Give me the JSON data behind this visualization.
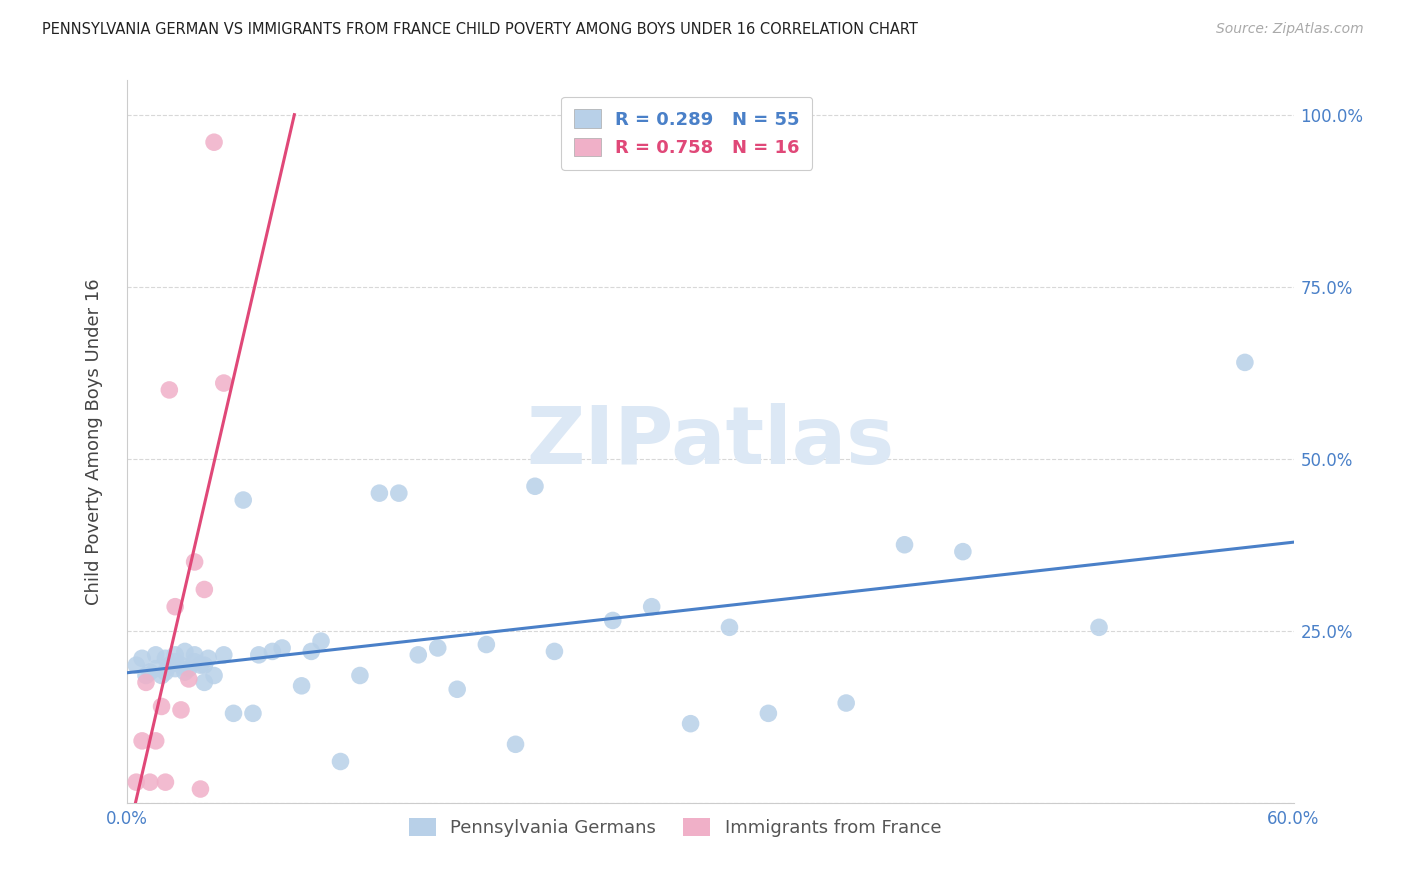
{
  "title": "PENNSYLVANIA GERMAN VS IMMIGRANTS FROM FRANCE CHILD POVERTY AMONG BOYS UNDER 16 CORRELATION CHART",
  "source": "Source: ZipAtlas.com",
  "ylabel": "Child Poverty Among Boys Under 16",
  "xlim": [
    0,
    0.6
  ],
  "ylim": [
    0,
    1.05
  ],
  "blue_color": "#b8d0e8",
  "pink_color": "#f0b0c8",
  "blue_line_color": "#4a80c8",
  "pink_line_color": "#e04878",
  "legend_blue_R": "R = 0.289",
  "legend_blue_N": "N = 55",
  "legend_pink_R": "R = 0.758",
  "legend_pink_N": "N = 16",
  "watermark": "ZIPatlas",
  "watermark_color": "#dce8f5",
  "blue_scatter_x": [
    0.005,
    0.008,
    0.01,
    0.012,
    0.015,
    0.015,
    0.018,
    0.02,
    0.02,
    0.022,
    0.025,
    0.025,
    0.025,
    0.028,
    0.03,
    0.03,
    0.032,
    0.035,
    0.035,
    0.038,
    0.04,
    0.04,
    0.042,
    0.045,
    0.05,
    0.055,
    0.06,
    0.065,
    0.068,
    0.075,
    0.08,
    0.09,
    0.095,
    0.1,
    0.11,
    0.12,
    0.13,
    0.14,
    0.15,
    0.16,
    0.17,
    0.185,
    0.2,
    0.21,
    0.22,
    0.25,
    0.27,
    0.29,
    0.31,
    0.33,
    0.37,
    0.4,
    0.43,
    0.5,
    0.575
  ],
  "blue_scatter_y": [
    0.2,
    0.21,
    0.185,
    0.19,
    0.195,
    0.215,
    0.185,
    0.19,
    0.21,
    0.2,
    0.195,
    0.205,
    0.215,
    0.2,
    0.19,
    0.22,
    0.195,
    0.205,
    0.215,
    0.2,
    0.175,
    0.2,
    0.21,
    0.185,
    0.215,
    0.13,
    0.44,
    0.13,
    0.215,
    0.22,
    0.225,
    0.17,
    0.22,
    0.235,
    0.06,
    0.185,
    0.45,
    0.45,
    0.215,
    0.225,
    0.165,
    0.23,
    0.085,
    0.46,
    0.22,
    0.265,
    0.285,
    0.115,
    0.255,
    0.13,
    0.145,
    0.375,
    0.365,
    0.255,
    0.64
  ],
  "pink_scatter_x": [
    0.005,
    0.008,
    0.01,
    0.012,
    0.015,
    0.018,
    0.02,
    0.022,
    0.025,
    0.028,
    0.032,
    0.035,
    0.038,
    0.04,
    0.045,
    0.05
  ],
  "pink_scatter_y": [
    0.03,
    0.09,
    0.175,
    0.03,
    0.09,
    0.14,
    0.03,
    0.6,
    0.285,
    0.135,
    0.18,
    0.35,
    0.02,
    0.31,
    0.96,
    0.61
  ]
}
